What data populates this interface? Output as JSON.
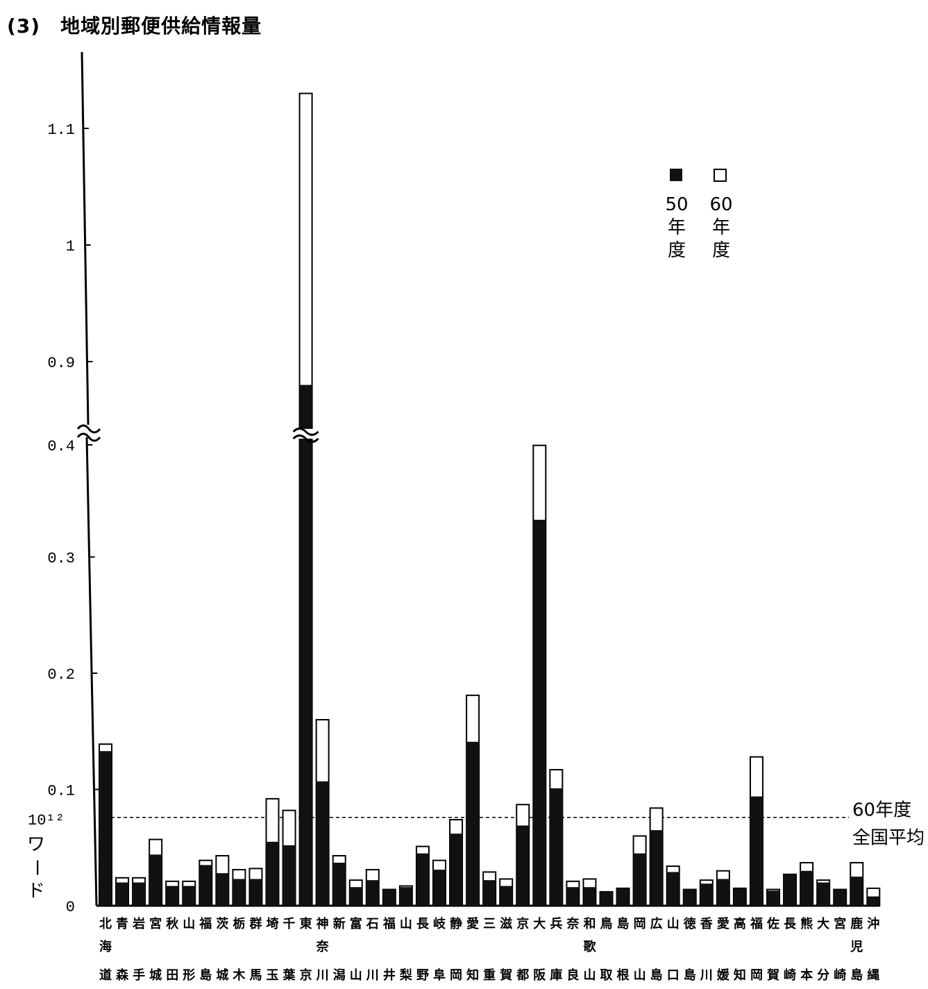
{
  "title": "(3)　地域別郵便供給情報量",
  "colors": {
    "bar_50": "#111111",
    "bar_60": "#ffffff",
    "axis": "#000000"
  },
  "chart_data": {
    "type": "bar",
    "stacked": false,
    "broken_axis": {
      "lower_range": [
        0,
        0.4
      ],
      "upper_range": [
        0.85,
        1.15
      ]
    },
    "y_ticks": [
      "0",
      "0.1",
      "0.2",
      "0.3",
      "0.4",
      "0.9",
      "1",
      "1.1"
    ],
    "y_unit_label": [
      "10¹²",
      "ワ",
      "ー",
      "ド"
    ],
    "categories": [
      [
        "北",
        "海",
        "道"
      ],
      [
        "青",
        "",
        "森"
      ],
      [
        "岩",
        "",
        "手"
      ],
      [
        "宮",
        "",
        "城"
      ],
      [
        "秋",
        "",
        "田"
      ],
      [
        "山",
        "",
        "形"
      ],
      [
        "福",
        "",
        "島"
      ],
      [
        "茨",
        "",
        "城"
      ],
      [
        "栃",
        "",
        "木"
      ],
      [
        "群",
        "",
        "馬"
      ],
      [
        "埼",
        "",
        "玉"
      ],
      [
        "千",
        "",
        "葉"
      ],
      [
        "東",
        "",
        "京"
      ],
      [
        "神",
        "奈",
        "川"
      ],
      [
        "新",
        "",
        "潟"
      ],
      [
        "富",
        "",
        "山"
      ],
      [
        "石",
        "",
        "川"
      ],
      [
        "福",
        "",
        "井"
      ],
      [
        "山",
        "",
        "梨"
      ],
      [
        "長",
        "",
        "野"
      ],
      [
        "岐",
        "",
        "阜"
      ],
      [
        "静",
        "",
        "岡"
      ],
      [
        "愛",
        "",
        "知"
      ],
      [
        "三",
        "",
        "重"
      ],
      [
        "滋",
        "",
        "賀"
      ],
      [
        "京",
        "",
        "都"
      ],
      [
        "大",
        "",
        "阪"
      ],
      [
        "兵",
        "",
        "庫"
      ],
      [
        "奈",
        "",
        "良"
      ],
      [
        "和",
        "歌",
        "山"
      ],
      [
        "鳥",
        "",
        "取"
      ],
      [
        "島",
        "",
        "根"
      ],
      [
        "岡",
        "",
        "山"
      ],
      [
        "広",
        "",
        "島"
      ],
      [
        "山",
        "",
        "口"
      ],
      [
        "徳",
        "",
        "島"
      ],
      [
        "香",
        "",
        "川"
      ],
      [
        "愛",
        "",
        "媛"
      ],
      [
        "高",
        "",
        "知"
      ],
      [
        "福",
        "",
        "岡"
      ],
      [
        "佐",
        "",
        "賀"
      ],
      [
        "長",
        "",
        "崎"
      ],
      [
        "熊",
        "",
        "本"
      ],
      [
        "大",
        "",
        "分"
      ],
      [
        "宮",
        "",
        "崎"
      ],
      [
        "鹿",
        "児",
        "島"
      ],
      [
        "沖",
        "",
        "縄"
      ]
    ],
    "series": [
      {
        "name": "50年度",
        "values": [
          0.133,
          0.02,
          0.02,
          0.044,
          0.017,
          0.017,
          0.035,
          0.028,
          0.023,
          0.023,
          0.055,
          0.052,
          0.88,
          0.107,
          0.037,
          0.016,
          0.022,
          0.014,
          0.016,
          0.045,
          0.031,
          0.062,
          0.141,
          0.022,
          0.017,
          0.069,
          0.332,
          0.101,
          0.016,
          0.016,
          0.012,
          0.015,
          0.045,
          0.065,
          0.029,
          0.014,
          0.019,
          0.023,
          0.015,
          0.094,
          0.013,
          0.027,
          0.03,
          0.02,
          0.014,
          0.025,
          0.008
        ]
      },
      {
        "name": "60年度",
        "values": [
          0.139,
          0.024,
          0.024,
          0.057,
          0.021,
          0.021,
          0.039,
          0.043,
          0.031,
          0.032,
          0.092,
          0.082,
          1.13,
          0.16,
          0.043,
          0.022,
          0.031,
          0.014,
          0.017,
          0.051,
          0.039,
          0.074,
          0.181,
          0.029,
          0.023,
          0.087,
          0.396,
          0.117,
          0.021,
          0.023,
          0.012,
          0.015,
          0.06,
          0.084,
          0.034,
          0.014,
          0.022,
          0.03,
          0.015,
          0.128,
          0.014,
          0.027,
          0.037,
          0.022,
          0.014,
          0.037,
          0.015
        ]
      }
    ],
    "reference_line": {
      "value": 0.076,
      "label": [
        "60年度",
        "全国平均"
      ]
    },
    "legend": {
      "placement": "top-right",
      "items": [
        {
          "swatch": "filled",
          "lines": [
            "50",
            "年",
            "度"
          ]
        },
        {
          "swatch": "open",
          "lines": [
            "60",
            "年",
            "度"
          ]
        }
      ]
    }
  }
}
